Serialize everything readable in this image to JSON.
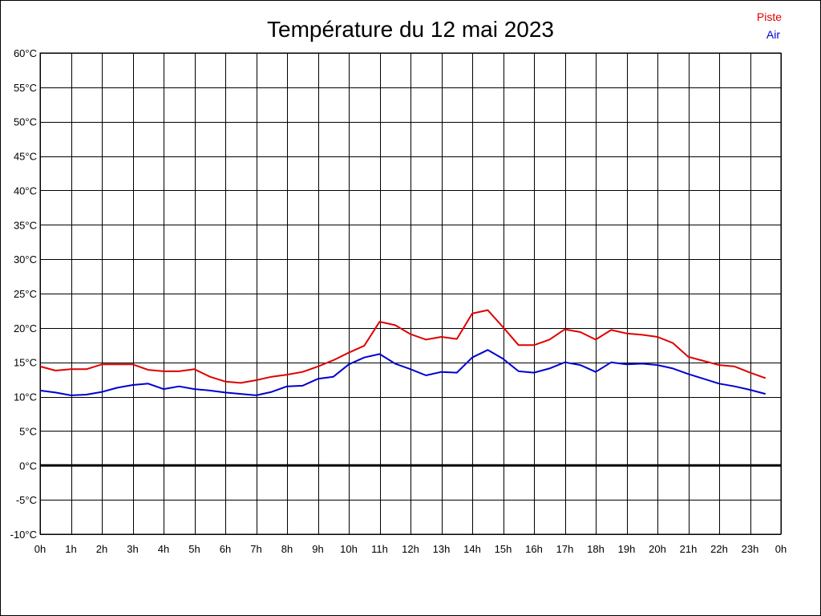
{
  "chart_data": {
    "type": "line",
    "title": "Température du 12 mai 2023",
    "xlabel": "",
    "ylabel": "",
    "x_unit": "hour",
    "xlim": [
      0,
      24
    ],
    "ylim": [
      -10,
      60
    ],
    "y_step": 5,
    "x_tick_labels": [
      "0h",
      "1h",
      "2h",
      "3h",
      "4h",
      "5h",
      "6h",
      "7h",
      "8h",
      "9h",
      "10h",
      "11h",
      "12h",
      "13h",
      "14h",
      "15h",
      "16h",
      "17h",
      "18h",
      "19h",
      "20h",
      "21h",
      "22h",
      "23h",
      "0h"
    ],
    "y_tick_labels": [
      "-10°C",
      "-5°C",
      "0°C",
      "5°C",
      "10°C",
      "15°C",
      "20°C",
      "25°C",
      "30°C",
      "35°C",
      "40°C",
      "45°C",
      "50°C",
      "55°C",
      "60°C"
    ],
    "grid": true,
    "legend_position": "top-right",
    "zero_line": true,
    "x": [
      0,
      0.5,
      1,
      1.5,
      2,
      2.5,
      3,
      3.5,
      4,
      4.5,
      5,
      5.5,
      6,
      6.5,
      7,
      7.5,
      8,
      8.5,
      9,
      9.5,
      10,
      10.5,
      11,
      11.5,
      12,
      12.5,
      13,
      13.5,
      14,
      14.5,
      15,
      15.5,
      16,
      16.5,
      17,
      17.5,
      18,
      18.5,
      19,
      19.5,
      20,
      20.5,
      21,
      21.5,
      22,
      22.5,
      23,
      23.5
    ],
    "series": [
      {
        "name": "Piste",
        "color": "#e00000",
        "values": [
          14.4,
          13.8,
          14.0,
          14.0,
          14.7,
          14.7,
          14.7,
          13.9,
          13.7,
          13.7,
          14.0,
          12.9,
          12.2,
          12.0,
          12.4,
          12.9,
          13.2,
          13.6,
          14.4,
          15.3,
          16.4,
          17.4,
          20.9,
          20.4,
          19.1,
          18.3,
          18.7,
          18.4,
          22.1,
          22.6,
          20.1,
          17.5,
          17.5,
          18.3,
          19.8,
          19.4,
          18.3,
          19.7,
          19.2,
          19.0,
          18.7,
          17.8,
          15.8,
          15.2,
          14.6,
          14.4,
          13.5,
          12.7
        ]
      },
      {
        "name": "Air",
        "color": "#0000d0",
        "values": [
          10.9,
          10.6,
          10.2,
          10.3,
          10.7,
          11.3,
          11.7,
          11.9,
          11.1,
          11.5,
          11.1,
          10.9,
          10.6,
          10.4,
          10.2,
          10.7,
          11.5,
          11.6,
          12.6,
          12.9,
          14.7,
          15.7,
          16.2,
          14.8,
          14.0,
          13.1,
          13.6,
          13.5,
          15.7,
          16.8,
          15.5,
          13.7,
          13.5,
          14.1,
          15.0,
          14.6,
          13.6,
          15.0,
          14.7,
          14.8,
          14.6,
          14.1,
          13.3,
          12.6,
          11.9,
          11.5,
          11.0,
          10.4
        ]
      }
    ]
  }
}
